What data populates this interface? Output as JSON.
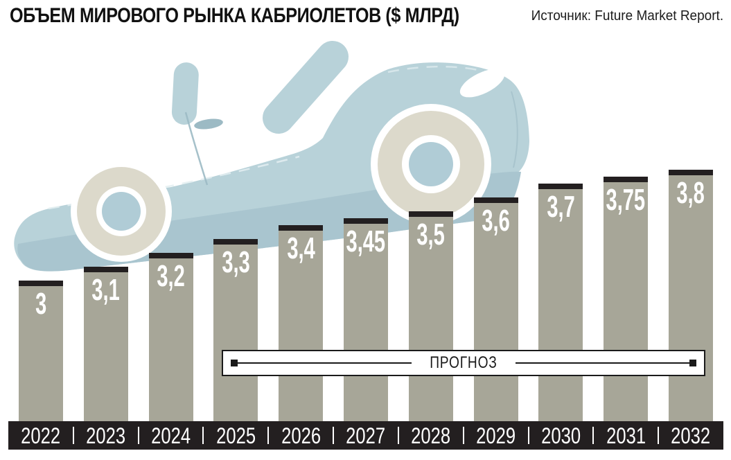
{
  "header": {
    "title": "ОБЪЕМ МИРОВОГО РЫНКА КАБРИОЛЕТОВ ($ МЛРД)",
    "source": "Источник: Future Market Report."
  },
  "forecast_label": "ПРОГНОЗ",
  "decor": {
    "car_illustration": "light-blue convertible car climbing the bars, beige wheels with white rims and blue hubs"
  },
  "colors": {
    "background": "#ffffff",
    "bar": "#a7a698",
    "bar_cap": "#231f20",
    "axis_strip": "#231f20",
    "value_text": "#ffffff",
    "year_text": "#ffffff",
    "forecast_border": "#1a1a1a",
    "car_body": "#b8d2d9",
    "car_body_shade": "#a9c5cf",
    "tire": "#dcd9cb",
    "wheel_ring": "#ffffff",
    "wheel_hub": "#b0ccd6"
  },
  "chart_data": {
    "type": "bar",
    "title": "ОБЪЕМ МИРОВОГО РЫНКА КАБРИОЛЕТОВ ($ МЛРД)",
    "source": "Источник: Future Market Report.",
    "unit": "$ млрд",
    "categories": [
      "2022",
      "2023",
      "2024",
      "2025",
      "2026",
      "2027",
      "2028",
      "2029",
      "2030",
      "2031",
      "2032"
    ],
    "values": [
      3,
      3.1,
      3.2,
      3.3,
      3.4,
      3.45,
      3.5,
      3.6,
      3.7,
      3.75,
      3.8
    ],
    "value_labels": [
      "3",
      "3,1",
      "3,2",
      "3,3",
      "3,4",
      "3,45",
      "3,5",
      "3,6",
      "3,7",
      "3,75",
      "3,8"
    ],
    "forecast": {
      "label": "ПРОГНОЗ",
      "from": "2025",
      "to": "2032"
    },
    "ylim": [
      0,
      4
    ],
    "grid": false,
    "legend": false,
    "value_labels_position": "inside-top",
    "xlabel": "",
    "ylabel": ""
  }
}
